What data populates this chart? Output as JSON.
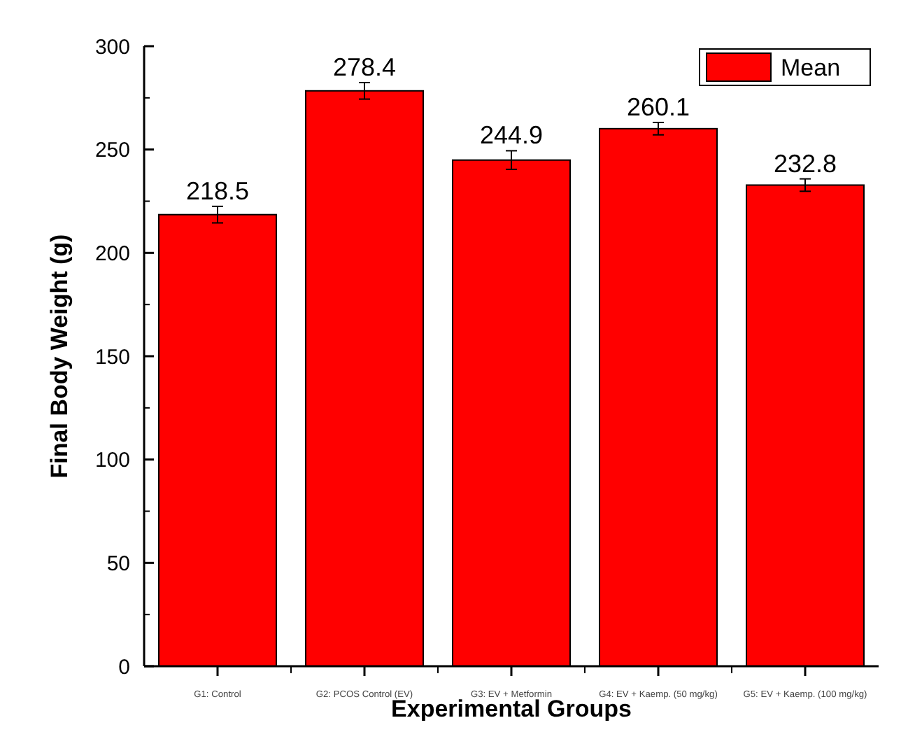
{
  "chart_data": {
    "type": "bar",
    "xlabel": "Experimental Groups",
    "ylabel": "Final Body Weight (g)",
    "categories": [
      "G1: Control",
      "G2: PCOS Control (EV)",
      "G3: EV + Metformin",
      "G4: EV + Kaemp. (50 mg/kg)",
      "G5: EV + Kaemp. (100 mg/kg)"
    ],
    "series": [
      {
        "name": "Mean",
        "color": "#ff0000",
        "values": [
          218.5,
          278.4,
          244.9,
          260.1,
          232.8
        ],
        "errors": [
          4,
          4,
          4.5,
          3,
          3
        ]
      }
    ],
    "ylim": [
      0,
      300
    ],
    "yticks": [
      0,
      50,
      100,
      150,
      200,
      250,
      300
    ],
    "data_labels": true,
    "legend": "top right",
    "grid": false
  }
}
